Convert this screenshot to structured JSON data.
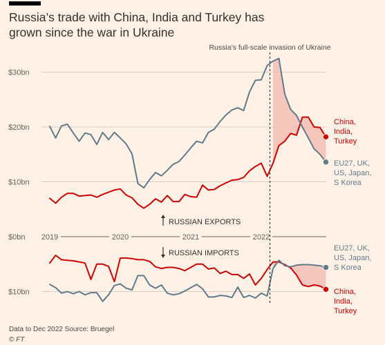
{
  "header": {
    "title": "Russia’s trade with China, India and Turkey has grown since the war in Ukraine"
  },
  "footer": {
    "source": "Data to Dec 2022   Source: Bruegel",
    "credit": "© FT"
  },
  "colors": {
    "background": "#fff1e5",
    "china_india_turkey": "#cc0000",
    "eu_group": "#5f7a8b",
    "gap_fill": "#f2b8ad",
    "grid": "#d9cec4",
    "text": "#66605c"
  },
  "chart_data": {
    "type": "line",
    "x_start": "2019-01",
    "x_end": "2022-12",
    "x_ticks": [
      "2019",
      "2020",
      "2021",
      "2022"
    ],
    "y_ticks": [
      {
        "value": 30,
        "label": "$30bn"
      },
      {
        "value": 20,
        "label": "$20bn"
      },
      {
        "value": 10,
        "label": "$10bn"
      },
      {
        "value": 0,
        "label": "$0bn"
      },
      {
        "value": -10,
        "label": "$10bn"
      }
    ],
    "ylim": [
      -13.5,
      33
    ],
    "grid": true,
    "annotation": {
      "label": "Russia’s full-scale invasion of Ukraine",
      "date": "2022-02"
    },
    "section_labels": {
      "exports": "RUSSIAN EXPORTS",
      "imports": "RUSSIAN IMPORTS"
    },
    "series": [
      {
        "name": "China, India, Turkey",
        "flow": "exports",
        "color": "#cc0000",
        "values": [
          7.0,
          6.1,
          7.2,
          7.9,
          7.9,
          7.4,
          7.5,
          7.6,
          7.2,
          7.7,
          8.1,
          8.5,
          8.7,
          7.6,
          7.1,
          5.9,
          5.2,
          5.9,
          6.9,
          6.3,
          7.5,
          6.4,
          6.4,
          7.7,
          7.3,
          7.2,
          9.4,
          8.5,
          8.6,
          9.3,
          9.8,
          10.3,
          10.4,
          10.8,
          12.0,
          12.8,
          13.4,
          11.0,
          13.4,
          16.6,
          17.4,
          18.8,
          18.5,
          21.8,
          21.8,
          20.0,
          19.9,
          18.2
        ]
      },
      {
        "name": "EU27, UK, US, Japan, S Korea",
        "flow": "exports",
        "color": "#5f7a8b",
        "values": [
          20.1,
          18.0,
          20.2,
          20.5,
          18.9,
          17.4,
          18.9,
          18.6,
          16.8,
          19.0,
          17.7,
          19.0,
          18.0,
          16.9,
          15.1,
          9.7,
          8.9,
          10.4,
          11.7,
          11.1,
          12.1,
          13.2,
          13.7,
          14.9,
          16.2,
          17.4,
          17.1,
          19.0,
          19.6,
          21.0,
          22.2,
          23.1,
          23.5,
          23.0,
          26.4,
          28.5,
          28.6,
          31.2,
          32.0,
          32.5,
          26.0,
          23.2,
          22.1,
          20.0,
          18.0,
          16.0,
          15.0,
          13.6
        ]
      },
      {
        "name": "China, India, Turkey",
        "flow": "imports",
        "color": "#cc0000",
        "values": [
          -4.8,
          -3.4,
          -4.2,
          -4.3,
          -4.4,
          -4.6,
          -4.8,
          -7.8,
          -5.0,
          -5.0,
          -5.4,
          -8.2,
          -3.9,
          -3.9,
          -4.0,
          -4.2,
          -4.2,
          -4.5,
          -5.5,
          -5.8,
          -5.6,
          -5.6,
          -5.8,
          -6.2,
          -5.6,
          -5.0,
          -5.0,
          -5.9,
          -5.7,
          -6.7,
          -6.3,
          -6.9,
          -6.9,
          -7.6,
          -6.8,
          -8.8,
          -7.6,
          -6.0,
          -4.6,
          -4.6,
          -5.1,
          -5.7,
          -7.0,
          -8.8,
          -9.1,
          -8.8,
          -9.0,
          -9.6
        ]
      },
      {
        "name": "EU27, UK, US, Japan, S Korea",
        "flow": "imports",
        "color": "#5f7a8b",
        "values": [
          -8.7,
          -9.3,
          -10.3,
          -10.0,
          -10.4,
          -10.0,
          -10.6,
          -10.2,
          -10.2,
          -11.8,
          -10.6,
          -8.9,
          -8.6,
          -9.4,
          -9.7,
          -7.1,
          -7.1,
          -8.8,
          -9.4,
          -8.8,
          -10.3,
          -10.6,
          -10.4,
          -9.9,
          -9.3,
          -8.7,
          -9.5,
          -11.0,
          -11.0,
          -10.7,
          -10.8,
          -11.1,
          -9.2,
          -11.1,
          -10.7,
          -11.2,
          -10.3,
          -10.8,
          -5.8,
          -4.3,
          -5.3,
          -5.5,
          -5.2,
          -5.1,
          -5.1,
          -5.2,
          -5.3,
          -5.6
        ]
      }
    ]
  }
}
